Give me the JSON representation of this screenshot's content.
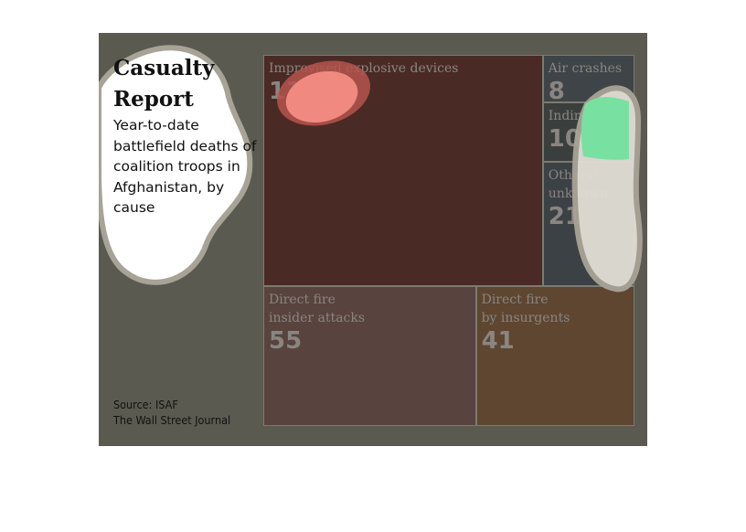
{
  "header": {
    "title": "Casualty Report",
    "subtitle": "Year-to-date battlefield deaths of coalition troops in Afghanistan, by cause"
  },
  "source": {
    "line1": "Source: ISAF",
    "line2": "The Wall Street Journal"
  },
  "chart_data": {
    "type": "treemap",
    "title": "Casualty Report",
    "subtitle": "Year-to-date battlefield deaths of coalition troops in Afghanistan, by cause",
    "items": [
      {
        "label": "Improvised explosive devices",
        "value": 119,
        "color": "#4a2a25"
      },
      {
        "label": "Air crashes",
        "value": 8,
        "color": "#3e4448"
      },
      {
        "label": "Indirect fire",
        "value": 10,
        "color": "#3a3f3d"
      },
      {
        "label": "Others/\nunknown",
        "value": 21,
        "color": "#3c4146"
      },
      {
        "label": "Direct fire\ninsider attacks",
        "value": 55,
        "color": "#58433e"
      },
      {
        "label": "Direct fire\nby insurgents",
        "value": 41,
        "color": "#5e4631"
      }
    ]
  }
}
